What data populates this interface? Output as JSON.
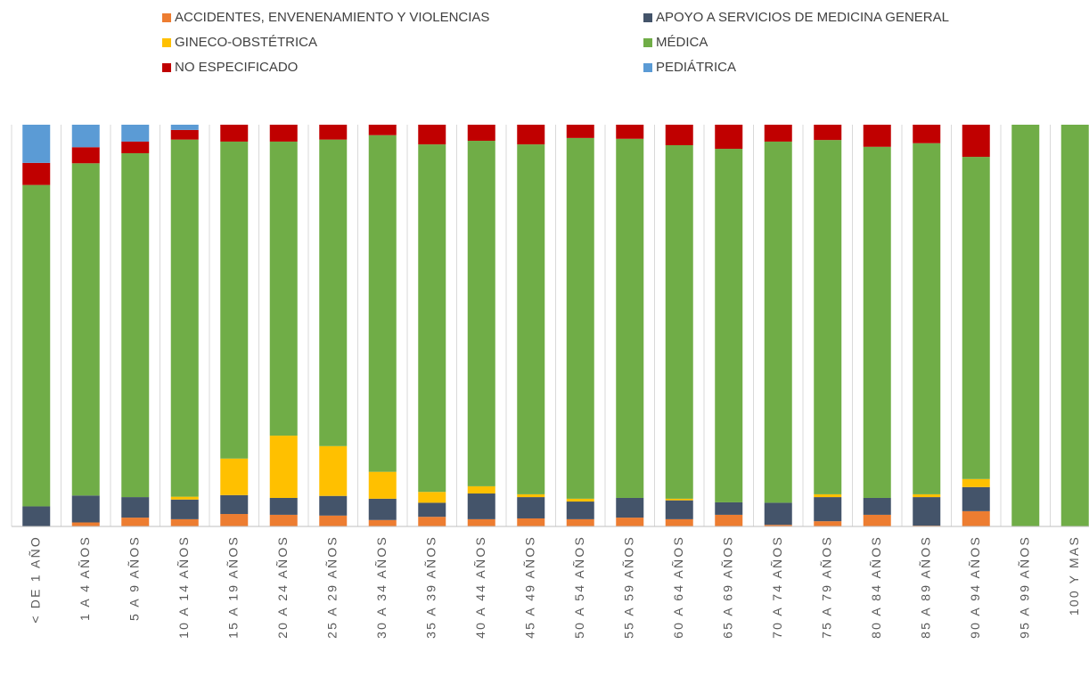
{
  "chart_data": {
    "type": "stacked_bar",
    "categories": [
      "< DE 1 AÑO",
      "1 A 4 AÑOS",
      "5 A 9 AÑOS",
      "10 A 14 AÑOS",
      "15 A 19 AÑOS",
      "20 A 24 AÑOS",
      "25 A 29 AÑOS",
      "30 A 34 AÑOS",
      "35 A 39 AÑOS",
      "40 A 44 AÑOS",
      "45 A 49 AÑOS",
      "50 A 54 AÑOS",
      "55 A 59 AÑOS",
      "60 A 64 AÑOS",
      "65 A 69 AÑOS",
      "70 A 74 AÑOS",
      "75 A 79 AÑOS",
      "80 A 84 AÑOS",
      "85 A 89 AÑOS",
      "90 A 94 AÑOS",
      "95 A 99 AÑOS",
      "100 Y MAS"
    ],
    "series": [
      {
        "name": "ACCIDENTES, ENVENENAMIENTO Y VIOLENCIAS",
        "color": "#ED7D31",
        "values": [
          0,
          1,
          2.2,
          1.8,
          3.1,
          2.9,
          2.7,
          1.6,
          2.4,
          1.8,
          2,
          1.8,
          2.2,
          1.8,
          2.9,
          0.4,
          1.3,
          2.9,
          0.2,
          3.8,
          0,
          0
        ]
      },
      {
        "name": "APOYO A SERVICIOS DE MEDICINA GENERAL",
        "color": "#44546A",
        "values": [
          5,
          6.7,
          5.1,
          4.9,
          4.7,
          4.2,
          4.9,
          5.3,
          3.5,
          6.4,
          5.3,
          4.4,
          4.9,
          4.7,
          3.1,
          5.5,
          6,
          4.2,
          7.1,
          6,
          0,
          0
        ]
      },
      {
        "name": "GINECO-OBSTÉTRICA",
        "color": "#FFC000",
        "values": [
          0,
          0,
          0,
          0.7,
          9.1,
          15.5,
          12.4,
          6.7,
          2.7,
          1.8,
          0.7,
          0.7,
          0,
          0.4,
          0,
          0,
          0.7,
          0,
          0.7,
          2,
          0,
          0
        ]
      },
      {
        "name": "MÉDICA",
        "color": "#70AD47",
        "values": [
          80,
          82.7,
          85.6,
          88.9,
          78.9,
          73.2,
          76.3,
          83.8,
          86.5,
          86,
          87.1,
          89.8,
          89.4,
          88,
          88,
          89.9,
          88.2,
          87.4,
          87.4,
          80.2,
          100,
          100
        ]
      },
      {
        "name": "NO ESPECIFICADO",
        "color": "#C00000",
        "values": [
          5.5,
          4,
          2.9,
          2.4,
          4.2,
          4.2,
          3.7,
          2.6,
          4.9,
          4,
          4.9,
          3.3,
          3.5,
          5.1,
          6,
          4.2,
          3.8,
          5.5,
          4.6,
          8,
          0,
          0
        ]
      },
      {
        "name": "PEDIÁTRICA",
        "color": "#5B9BD5",
        "values": [
          9.5,
          5.6,
          4.2,
          1.3,
          0,
          0,
          0,
          0,
          0,
          0,
          0,
          0,
          0,
          0,
          0,
          0,
          0,
          0,
          0,
          0,
          0,
          0
        ]
      }
    ],
    "ylim": [
      0,
      100
    ]
  }
}
